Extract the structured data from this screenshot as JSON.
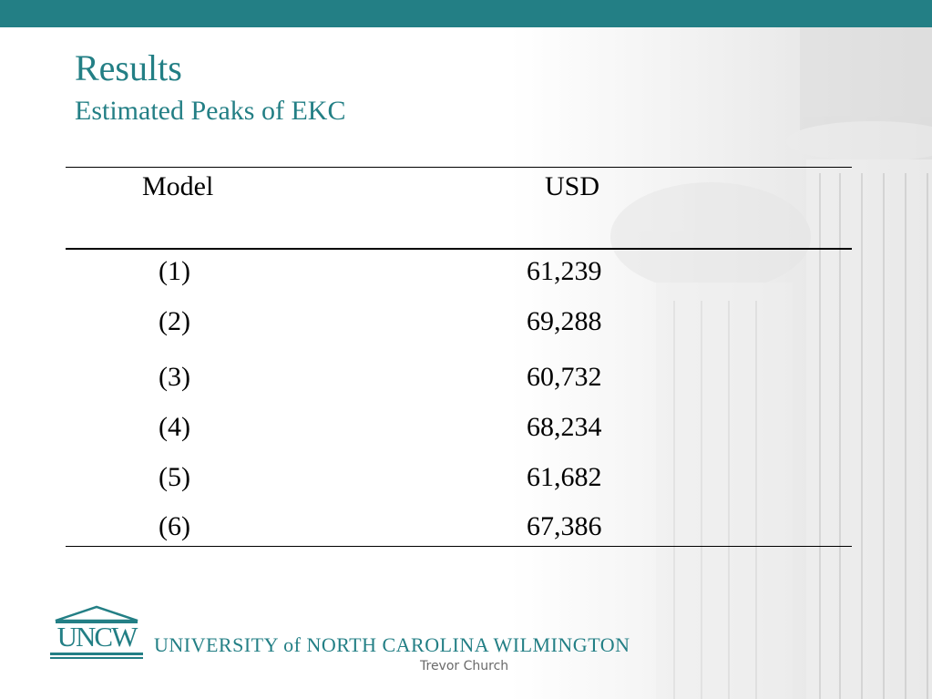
{
  "slide": {
    "title": "Results",
    "subtitle": "Estimated Peaks of EKC"
  },
  "table": {
    "headers": {
      "model": "Model",
      "usd": "USD"
    },
    "rows": [
      {
        "model": "(1)",
        "usd": "61,239"
      },
      {
        "model": "(2)",
        "usd": "69,288"
      },
      {
        "model": "(3)",
        "usd": "60,732"
      },
      {
        "model": "(4)",
        "usd": "68,234"
      },
      {
        "model": "(5)",
        "usd": "61,682"
      },
      {
        "model": "(6)",
        "usd": "67,386"
      }
    ]
  },
  "footer": {
    "logo_text": "UNCW",
    "university": "UNIVERSITY of NORTH CAROLINA WILMINGTON",
    "author": "Trevor Church"
  },
  "colors": {
    "accent": "#237f85"
  }
}
